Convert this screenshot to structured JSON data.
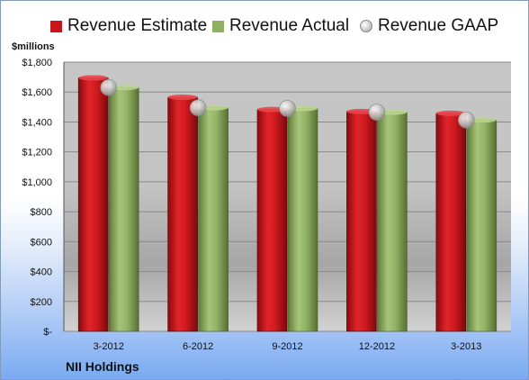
{
  "legend": {
    "estimate_label": "Revenue Estimate",
    "actual_label": "Revenue Actual",
    "gaap_label": "Revenue GAAP"
  },
  "units_label": "$millions",
  "company": "NII Holdings",
  "colors": {
    "estimate": "#c8141a",
    "actual": "#8fb060",
    "gaap": "#c0c0c0"
  },
  "chart_data": {
    "type": "bar",
    "categories": [
      "3-2012",
      "6-2012",
      "9-2012",
      "12-2012",
      "3-2013"
    ],
    "series": [
      {
        "name": "Revenue Estimate",
        "values": [
          1695,
          1565,
          1483,
          1470,
          1458
        ]
      },
      {
        "name": "Revenue Actual",
        "values": [
          1630,
          1495,
          1490,
          1465,
          1413
        ]
      },
      {
        "name": "Revenue GAAP",
        "values": [
          1630,
          1495,
          1490,
          1465,
          1413
        ]
      }
    ],
    "ylabel": "$millions",
    "ylim": [
      0,
      1800
    ],
    "yticks": [
      0,
      200,
      400,
      600,
      800,
      1000,
      1200,
      1400,
      1600,
      1800
    ],
    "ytick_labels": [
      "$-",
      "$200",
      "$400",
      "$600",
      "$800",
      "$1,000",
      "$1,200",
      "$1,400",
      "$1,600",
      "$1,800"
    ],
    "grid": true,
    "legend_position": "top"
  }
}
